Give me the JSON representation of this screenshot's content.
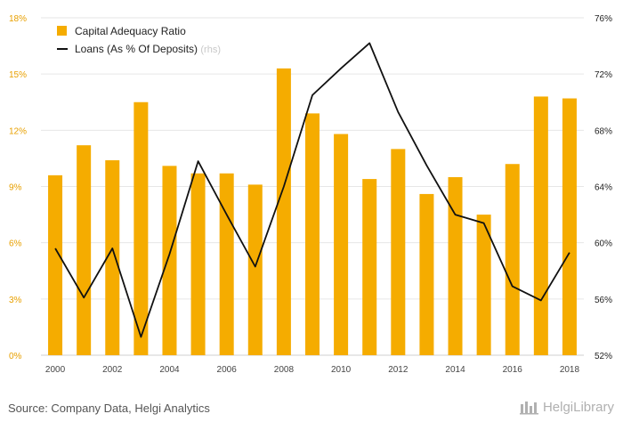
{
  "chart_data": {
    "type": "bar+line",
    "x": [
      "2000",
      "2001",
      "2002",
      "2003",
      "2004",
      "2005",
      "2006",
      "2007",
      "2008",
      "2009",
      "2010",
      "2011",
      "2012",
      "2013",
      "2014",
      "2015",
      "2016",
      "2017",
      "2018"
    ],
    "x_tick_labels": [
      "2000",
      "2002",
      "2004",
      "2006",
      "2008",
      "2010",
      "2012",
      "2014",
      "2016",
      "2018"
    ],
    "series": [
      {
        "name": "Capital Adequacy Ratio",
        "type": "bar",
        "axis": "left",
        "color": "#f5ac00",
        "values": [
          9.6,
          11.2,
          10.4,
          13.5,
          10.1,
          9.7,
          9.7,
          9.1,
          15.3,
          12.9,
          11.8,
          9.4,
          11.0,
          8.6,
          9.5,
          7.5,
          10.2,
          13.8,
          13.7
        ]
      },
      {
        "name": "Loans (As % Of Deposits)",
        "name_suffix": "(rhs)",
        "type": "line",
        "axis": "right",
        "color": "#111111",
        "values": [
          59.6,
          56.1,
          59.6,
          53.3,
          59.2,
          65.8,
          62.0,
          58.3,
          64.0,
          70.5,
          72.4,
          74.2,
          69.3,
          65.5,
          62.0,
          61.4,
          56.9,
          55.9,
          59.3
        ]
      }
    ],
    "left_axis": {
      "ylim": [
        0,
        18
      ],
      "ticks": [
        "0%",
        "3%",
        "6%",
        "9%",
        "12%",
        "15%",
        "18%"
      ]
    },
    "right_axis": {
      "ylim": [
        52,
        76
      ],
      "ticks": [
        "52%",
        "56%",
        "60%",
        "64%",
        "68%",
        "72%",
        "76%"
      ]
    },
    "grid": true,
    "legend_position": "top-left"
  },
  "footer": {
    "source": "Source: Company Data, Helgi Analytics",
    "logo_text": "HelgiLibrary"
  }
}
